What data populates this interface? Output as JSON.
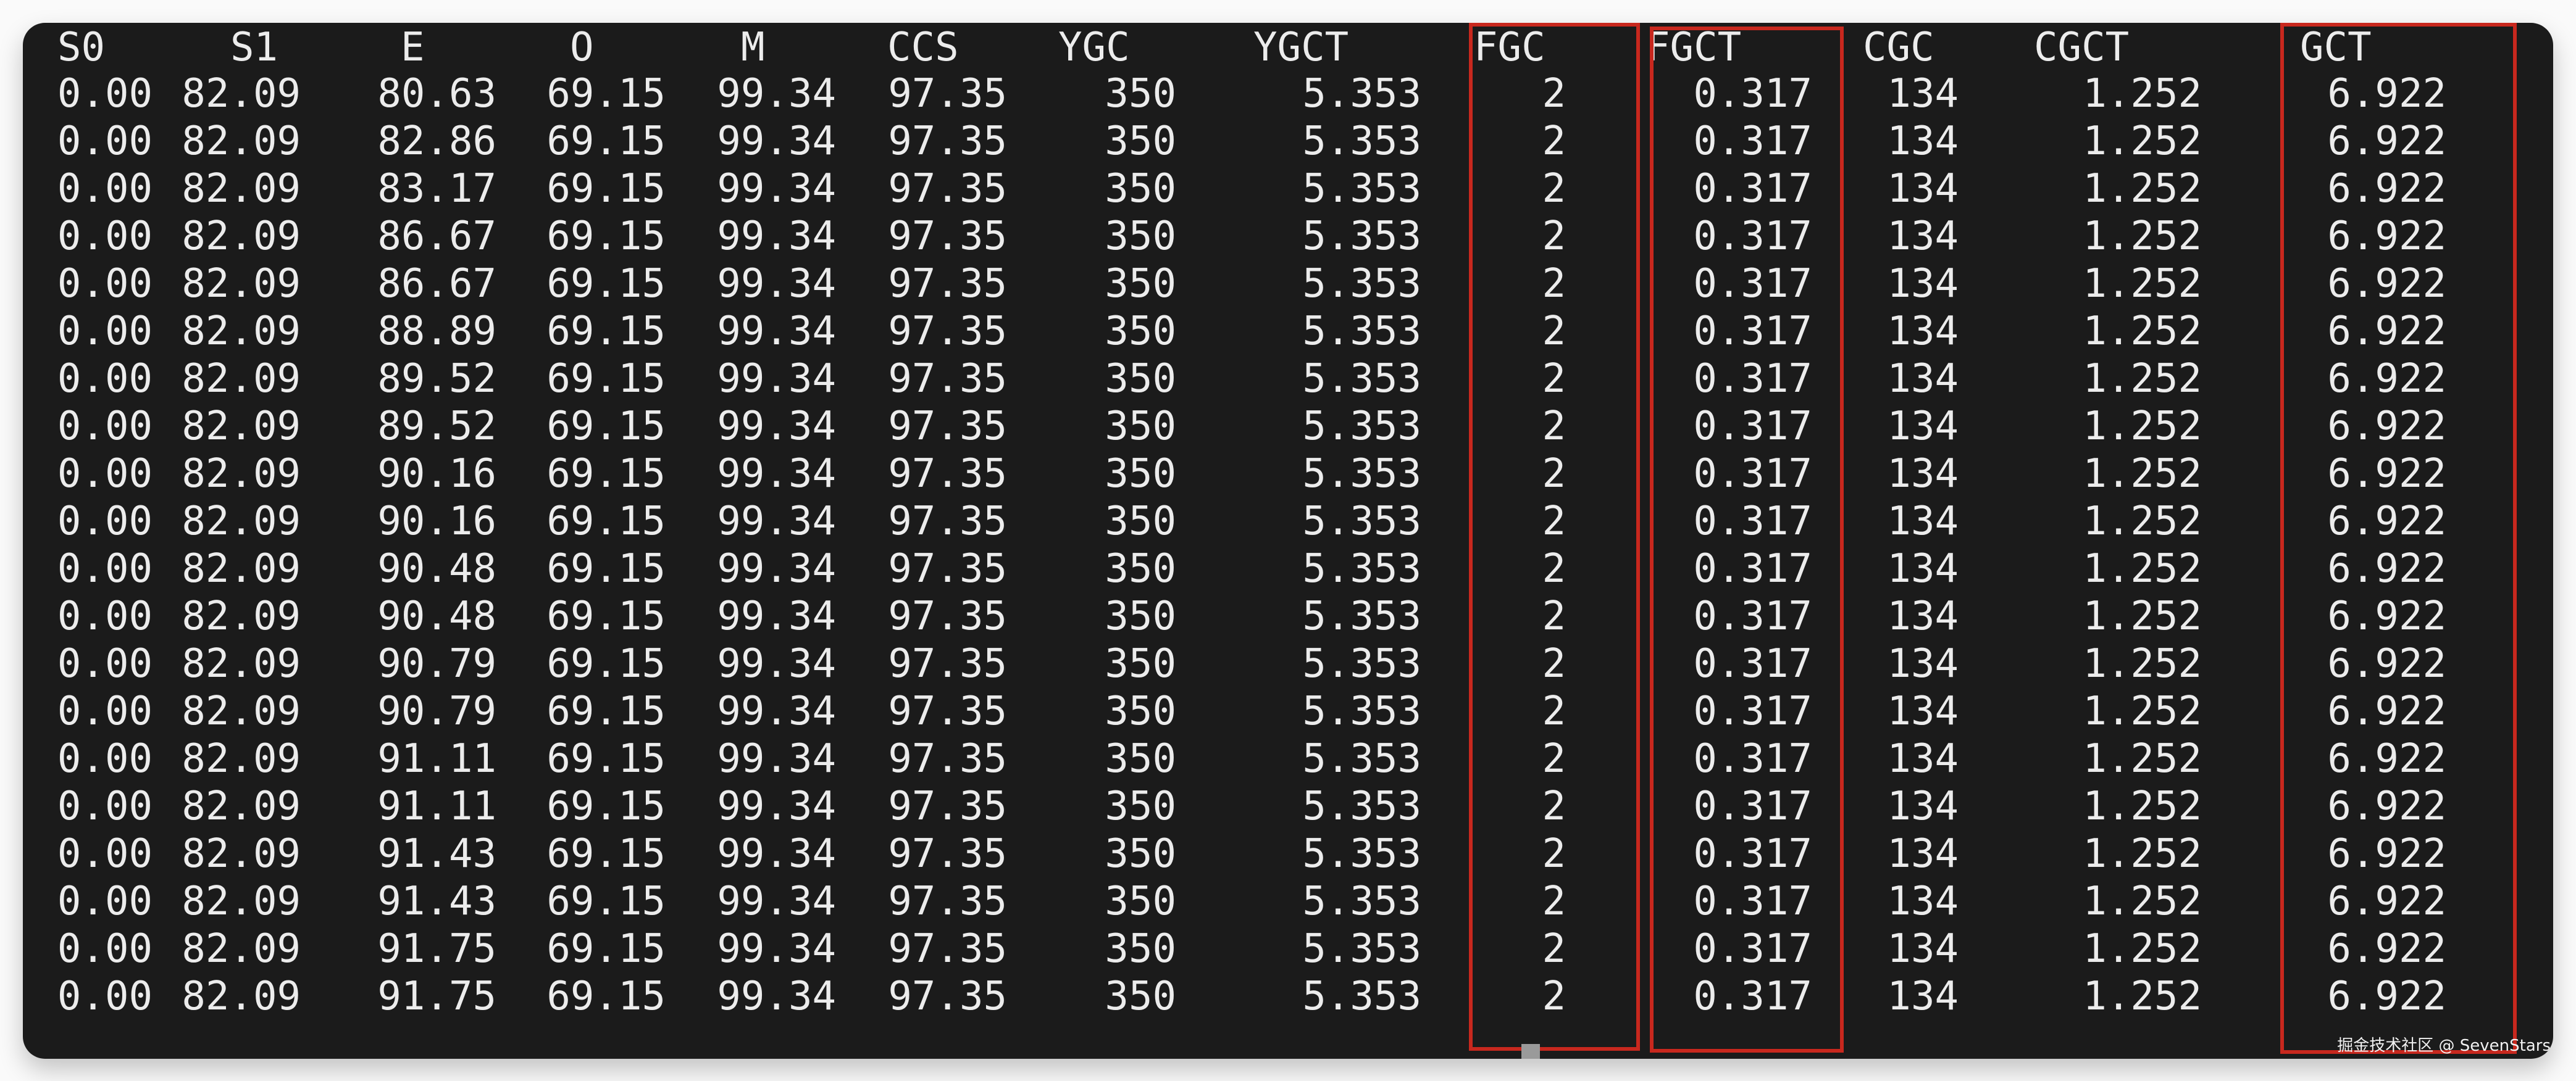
{
  "terminal": {
    "columns": [
      "S0",
      "S1",
      "E",
      "O",
      "M",
      "CCS",
      "YGC",
      "YGCT",
      "FGC",
      "FGCT",
      "CGC",
      "CGCT",
      "GCT"
    ],
    "rows": [
      [
        "0.00",
        "82.09",
        "80.63",
        "69.15",
        "99.34",
        "97.35",
        "350",
        "5.353",
        "2",
        "0.317",
        "134",
        "1.252",
        "6.922"
      ],
      [
        "0.00",
        "82.09",
        "82.86",
        "69.15",
        "99.34",
        "97.35",
        "350",
        "5.353",
        "2",
        "0.317",
        "134",
        "1.252",
        "6.922"
      ],
      [
        "0.00",
        "82.09",
        "83.17",
        "69.15",
        "99.34",
        "97.35",
        "350",
        "5.353",
        "2",
        "0.317",
        "134",
        "1.252",
        "6.922"
      ],
      [
        "0.00",
        "82.09",
        "86.67",
        "69.15",
        "99.34",
        "97.35",
        "350",
        "5.353",
        "2",
        "0.317",
        "134",
        "1.252",
        "6.922"
      ],
      [
        "0.00",
        "82.09",
        "86.67",
        "69.15",
        "99.34",
        "97.35",
        "350",
        "5.353",
        "2",
        "0.317",
        "134",
        "1.252",
        "6.922"
      ],
      [
        "0.00",
        "82.09",
        "88.89",
        "69.15",
        "99.34",
        "97.35",
        "350",
        "5.353",
        "2",
        "0.317",
        "134",
        "1.252",
        "6.922"
      ],
      [
        "0.00",
        "82.09",
        "89.52",
        "69.15",
        "99.34",
        "97.35",
        "350",
        "5.353",
        "2",
        "0.317",
        "134",
        "1.252",
        "6.922"
      ],
      [
        "0.00",
        "82.09",
        "89.52",
        "69.15",
        "99.34",
        "97.35",
        "350",
        "5.353",
        "2",
        "0.317",
        "134",
        "1.252",
        "6.922"
      ],
      [
        "0.00",
        "82.09",
        "90.16",
        "69.15",
        "99.34",
        "97.35",
        "350",
        "5.353",
        "2",
        "0.317",
        "134",
        "1.252",
        "6.922"
      ],
      [
        "0.00",
        "82.09",
        "90.16",
        "69.15",
        "99.34",
        "97.35",
        "350",
        "5.353",
        "2",
        "0.317",
        "134",
        "1.252",
        "6.922"
      ],
      [
        "0.00",
        "82.09",
        "90.48",
        "69.15",
        "99.34",
        "97.35",
        "350",
        "5.353",
        "2",
        "0.317",
        "134",
        "1.252",
        "6.922"
      ],
      [
        "0.00",
        "82.09",
        "90.48",
        "69.15",
        "99.34",
        "97.35",
        "350",
        "5.353",
        "2",
        "0.317",
        "134",
        "1.252",
        "6.922"
      ],
      [
        "0.00",
        "82.09",
        "90.79",
        "69.15",
        "99.34",
        "97.35",
        "350",
        "5.353",
        "2",
        "0.317",
        "134",
        "1.252",
        "6.922"
      ],
      [
        "0.00",
        "82.09",
        "90.79",
        "69.15",
        "99.34",
        "97.35",
        "350",
        "5.353",
        "2",
        "0.317",
        "134",
        "1.252",
        "6.922"
      ],
      [
        "0.00",
        "82.09",
        "91.11",
        "69.15",
        "99.34",
        "97.35",
        "350",
        "5.353",
        "2",
        "0.317",
        "134",
        "1.252",
        "6.922"
      ],
      [
        "0.00",
        "82.09",
        "91.11",
        "69.15",
        "99.34",
        "97.35",
        "350",
        "5.353",
        "2",
        "0.317",
        "134",
        "1.252",
        "6.922"
      ],
      [
        "0.00",
        "82.09",
        "91.43",
        "69.15",
        "99.34",
        "97.35",
        "350",
        "5.353",
        "2",
        "0.317",
        "134",
        "1.252",
        "6.922"
      ],
      [
        "0.00",
        "82.09",
        "91.43",
        "69.15",
        "99.34",
        "97.35",
        "350",
        "5.353",
        "2",
        "0.317",
        "134",
        "1.252",
        "6.922"
      ],
      [
        "0.00",
        "82.09",
        "91.75",
        "69.15",
        "99.34",
        "97.35",
        "350",
        "5.353",
        "2",
        "0.317",
        "134",
        "1.252",
        "6.922"
      ],
      [
        "0.00",
        "82.09",
        "91.75",
        "69.15",
        "99.34",
        "97.35",
        "350",
        "5.353",
        "2",
        "0.317",
        "134",
        "1.252",
        "6.922"
      ]
    ],
    "highlighted_columns": [
      "FGC",
      "FGCT",
      "GCT"
    ],
    "highlight_color": "#c8281e",
    "background_color": "#1b1b1b"
  },
  "watermark": "掘金技术社区 @ SevenStars"
}
